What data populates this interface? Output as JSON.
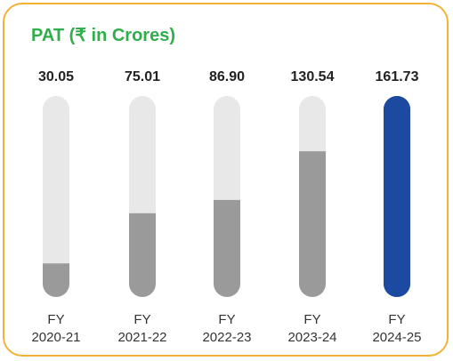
{
  "chart_data": {
    "type": "bar",
    "title": "PAT (₹ in Crores)",
    "categories": [
      [
        "FY",
        "2020-21"
      ],
      [
        "FY",
        "2021-22"
      ],
      [
        "FY",
        "2022-23"
      ],
      [
        "FY",
        "2023-24"
      ],
      [
        "FY",
        "2024-25"
      ]
    ],
    "values": [
      30.05,
      75.01,
      86.9,
      130.54,
      161.73
    ],
    "value_labels": [
      "30.05",
      "75.01",
      "86.90",
      "130.54",
      "161.73"
    ],
    "ylim": [
      0,
      180
    ],
    "grid": false,
    "legend": "none",
    "colors": {
      "title": "#2fae4a",
      "border": "#f2b233",
      "track": "#e8e8e8",
      "fill": "#9a9a9a",
      "highlight": "#1b4aa0",
      "value_text": "#222222",
      "category_text": "#333333"
    },
    "highlight_index": 4
  }
}
